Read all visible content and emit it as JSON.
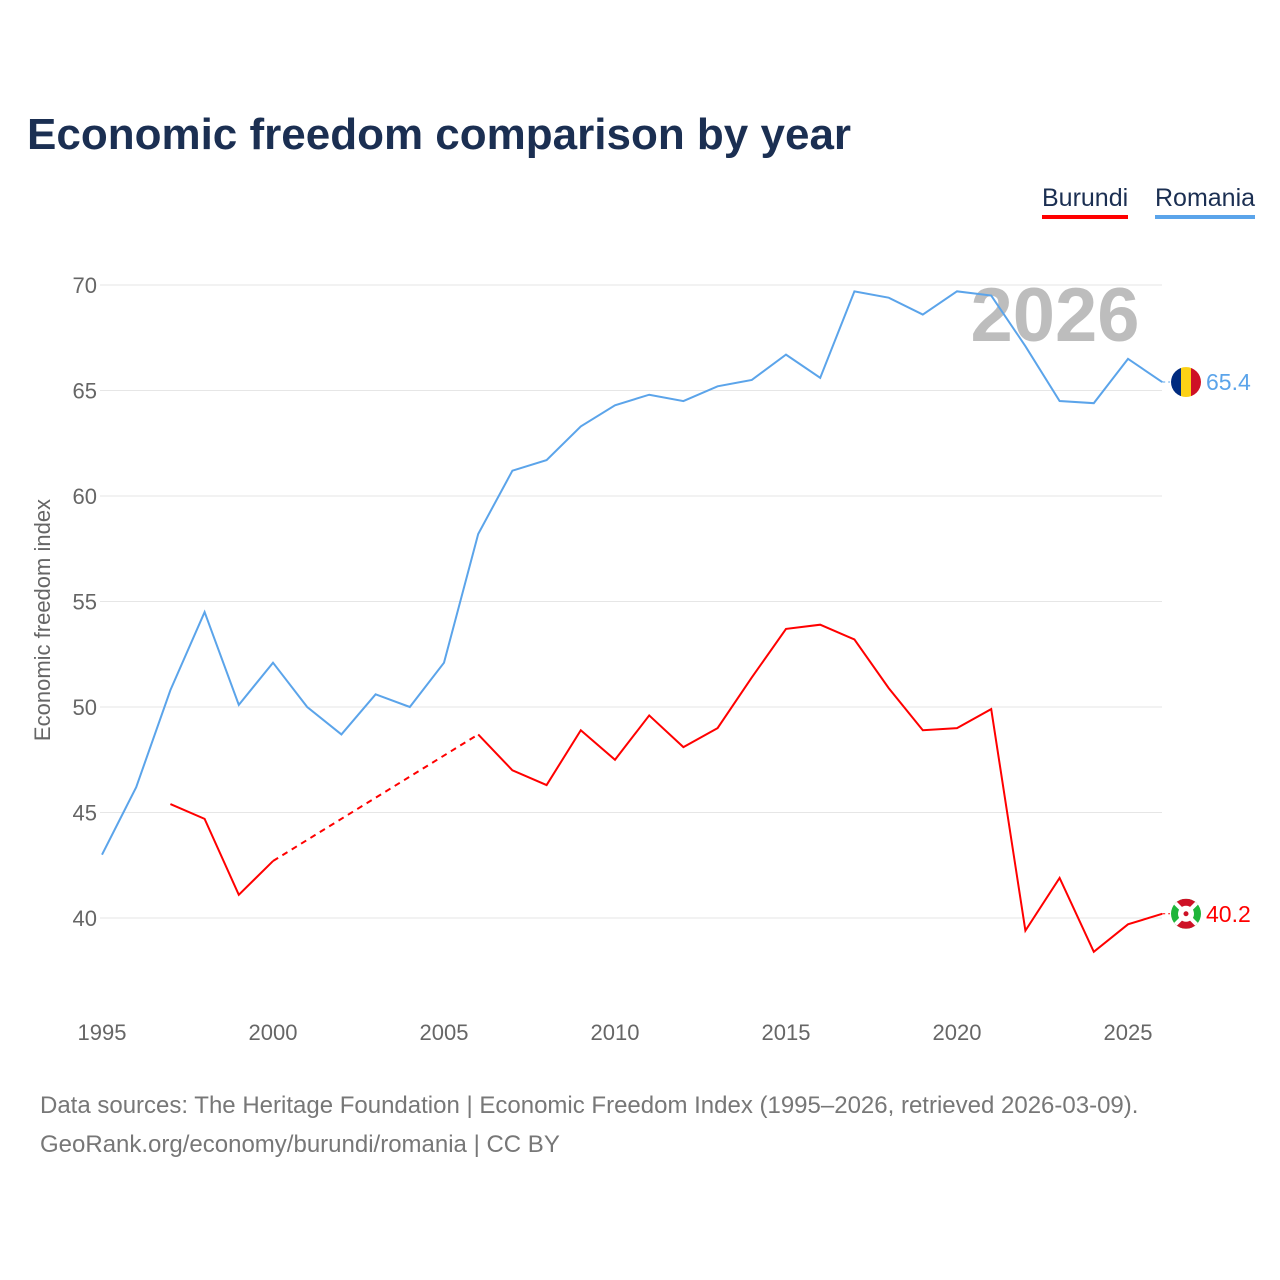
{
  "chart_data": {
    "type": "line",
    "title": "Economic freedom comparison by year",
    "xlabel": "",
    "ylabel": "Economic freedom index",
    "xlim": [
      1995,
      2026
    ],
    "ylim": [
      36,
      72
    ],
    "yticks": [
      40,
      45,
      50,
      55,
      60,
      65,
      70
    ],
    "xticks": [
      1995,
      2000,
      2005,
      2010,
      2015,
      2020,
      2025
    ],
    "grid": true,
    "legend_position": "top-right",
    "watermark_year": "2026",
    "x": [
      1995,
      1996,
      1997,
      1998,
      1999,
      2000,
      2001,
      2002,
      2003,
      2004,
      2005,
      2006,
      2007,
      2008,
      2009,
      2010,
      2011,
      2012,
      2013,
      2014,
      2015,
      2016,
      2017,
      2018,
      2019,
      2020,
      2021,
      2022,
      2023,
      2024,
      2025,
      2026
    ],
    "series": [
      {
        "name": "Burundi",
        "color": "#ff0000",
        "end_label": "40.2",
        "values": [
          null,
          null,
          45.4,
          44.7,
          41.1,
          42.7,
          null,
          null,
          null,
          null,
          null,
          48.7,
          47.0,
          46.3,
          48.9,
          47.5,
          49.6,
          48.1,
          49.0,
          51.4,
          53.7,
          53.9,
          53.2,
          50.9,
          48.9,
          49.0,
          49.9,
          39.4,
          41.9,
          38.4,
          39.7,
          40.2
        ]
      },
      {
        "name": "Romania",
        "color": "#5ba4ea",
        "end_label": "65.4",
        "values": [
          43.0,
          46.2,
          50.8,
          54.5,
          50.1,
          52.1,
          50.0,
          48.7,
          50.6,
          50.0,
          52.1,
          58.2,
          61.2,
          61.7,
          63.3,
          64.3,
          64.8,
          64.5,
          65.2,
          65.5,
          66.7,
          65.6,
          69.7,
          69.4,
          68.6,
          69.7,
          69.5,
          67.1,
          64.5,
          64.4,
          66.5,
          65.4
        ]
      }
    ]
  },
  "footer": {
    "line1": "Data sources: The Heritage Foundation | Economic Freedom Index (1995–2026, retrieved 2026-03-09).",
    "line2": "GeoRank.org/economy/burundi/romania | CC BY"
  }
}
